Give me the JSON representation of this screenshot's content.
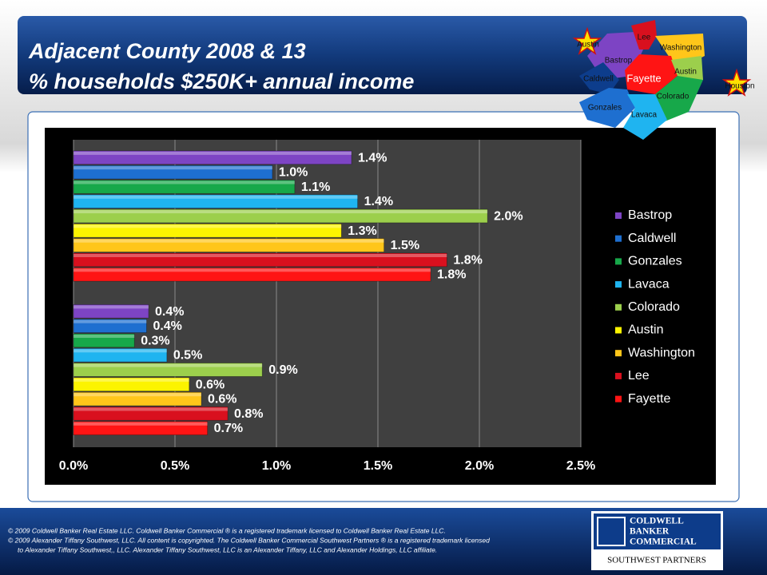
{
  "header": {
    "title_lines": [
      "Adjacent County 2008 & 13",
      "% households $250K+ annual income"
    ]
  },
  "map": {
    "labels": [
      "Austin",
      "Lee",
      "Washington",
      "Bastrop",
      "Caldwell",
      "Fayette",
      "Austin",
      "Colorado",
      "Gonzales",
      "Lavaca",
      "Houston"
    ]
  },
  "chart_data": {
    "type": "hbar",
    "categories": [
      null,
      null
    ],
    "series": [
      {
        "name": "Bastrop",
        "color": "#7d44c4",
        "values": [
          1.37,
          0.37
        ],
        "value_labels": [
          "1.4%",
          "0.4%"
        ]
      },
      {
        "name": "Caldwell",
        "color": "#1e6fd0",
        "values": [
          0.98,
          0.36
        ],
        "value_labels": [
          "1.0%",
          "0.4%"
        ]
      },
      {
        "name": "Gonzales",
        "color": "#17a84a",
        "values": [
          1.09,
          0.3
        ],
        "value_labels": [
          "1.1%",
          "0.3%"
        ]
      },
      {
        "name": "Lavaca",
        "color": "#1fb4f0",
        "values": [
          1.4,
          0.46
        ],
        "value_labels": [
          "1.4%",
          "0.5%"
        ]
      },
      {
        "name": "Colorado",
        "color": "#9ccf4c",
        "values": [
          2.04,
          0.93
        ],
        "value_labels": [
          "2.0%",
          "0.9%"
        ]
      },
      {
        "name": "Austin",
        "color": "#fcf400",
        "values": [
          1.32,
          0.57
        ],
        "value_labels": [
          "1.3%",
          "0.6%"
        ]
      },
      {
        "name": "Washington",
        "color": "#ffc61a",
        "values": [
          1.53,
          0.63
        ],
        "value_labels": [
          "1.5%",
          "0.6%"
        ]
      },
      {
        "name": "Lee",
        "color": "#d9101e",
        "values": [
          1.84,
          0.76
        ],
        "value_labels": [
          "1.8%",
          "0.8%"
        ]
      },
      {
        "name": "Fayette",
        "color": "#ff1414",
        "values": [
          1.76,
          0.66
        ],
        "value_labels": [
          "1.8%",
          "0.7%"
        ]
      }
    ],
    "xlim": [
      0,
      2.5
    ],
    "xticks": [
      {
        "value": 0,
        "label": "0.0%"
      },
      {
        "value": 0.5,
        "label": "0.5%"
      },
      {
        "value": 1,
        "label": "1.0%"
      },
      {
        "value": 1.5,
        "label": "1.5%"
      },
      {
        "value": 2,
        "label": "2.0%"
      },
      {
        "value": 2.5,
        "label": "2.5%"
      }
    ],
    "grid": true,
    "legend": "right"
  },
  "footer": {
    "lines": [
      "© 2009 Coldwell Banker Real Estate LLC. Coldwell Banker Commercial ® is a registered trademark licensed to Coldwell Banker Real Estate LLC.",
      "© 2009 Alexander Tiffany Southwest, LLC. All content is copyrighted. The Coldwell Banker Commercial Southwest Partners ® is a registered trademark licensed",
      "to Alexander Tiffany Southwest,, LLC.  Alexander Tiffany Southwest, LLC is an Alexander Tiffany, LLC and Alexander Holdings, LLC affiliate."
    ]
  },
  "logo": {
    "lines": [
      "COLDWELL",
      "BANKER",
      "COMMERCIAL"
    ],
    "subtitle": "SOUTHWEST PARTNERS"
  }
}
